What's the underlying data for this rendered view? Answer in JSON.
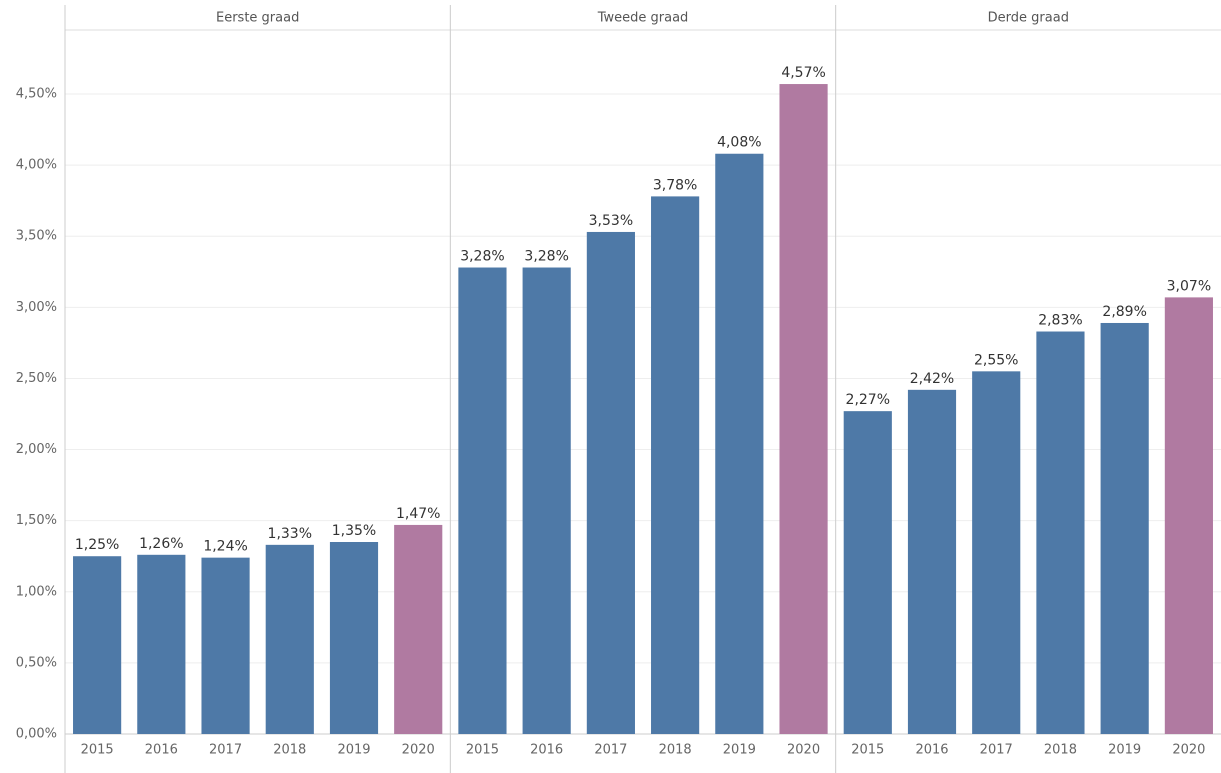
{
  "chart_data": {
    "type": "bar",
    "ylim": [
      0,
      4.95
    ],
    "yticks": [
      {
        "value": 0,
        "label": "0,00%"
      },
      {
        "value": 0.5,
        "label": "0,50%"
      },
      {
        "value": 1,
        "label": "1,00%"
      },
      {
        "value": 1.5,
        "label": "1,50%"
      },
      {
        "value": 2,
        "label": "2,00%"
      },
      {
        "value": 2.5,
        "label": "2,50%"
      },
      {
        "value": 3,
        "label": "3,00%"
      },
      {
        "value": 3.5,
        "label": "3,50%"
      },
      {
        "value": 4,
        "label": "4,00%"
      },
      {
        "value": 4.5,
        "label": "4,50%"
      }
    ],
    "grid": true,
    "panels": [
      {
        "title": "Eerste graad",
        "categories": [
          "2015",
          "2016",
          "2017",
          "2018",
          "2019",
          "2020"
        ],
        "values": [
          1.25,
          1.26,
          1.24,
          1.33,
          1.35,
          1.47
        ],
        "value_labels": [
          "1,25%",
          "1,26%",
          "1,24%",
          "1,33%",
          "1,35%",
          "1,47%"
        ],
        "colors": [
          "#4e79a7",
          "#4e79a7",
          "#4e79a7",
          "#4e79a7",
          "#4e79a7",
          "#b07aa1"
        ]
      },
      {
        "title": "Tweede graad",
        "categories": [
          "2015",
          "2016",
          "2017",
          "2018",
          "2019",
          "2020"
        ],
        "values": [
          3.28,
          3.28,
          3.53,
          3.78,
          4.08,
          4.57
        ],
        "value_labels": [
          "3,28%",
          "3,28%",
          "3,53%",
          "3,78%",
          "4,08%",
          "4,57%"
        ],
        "colors": [
          "#4e79a7",
          "#4e79a7",
          "#4e79a7",
          "#4e79a7",
          "#4e79a7",
          "#b07aa1"
        ]
      },
      {
        "title": "Derde graad",
        "categories": [
          "2015",
          "2016",
          "2017",
          "2018",
          "2019",
          "2020"
        ],
        "values": [
          2.27,
          2.42,
          2.55,
          2.83,
          2.89,
          3.07
        ],
        "value_labels": [
          "2,27%",
          "2,42%",
          "2,55%",
          "2,83%",
          "2,89%",
          "3,07%"
        ],
        "colors": [
          "#4e79a7",
          "#4e79a7",
          "#4e79a7",
          "#4e79a7",
          "#4e79a7",
          "#b07aa1"
        ]
      }
    ]
  }
}
